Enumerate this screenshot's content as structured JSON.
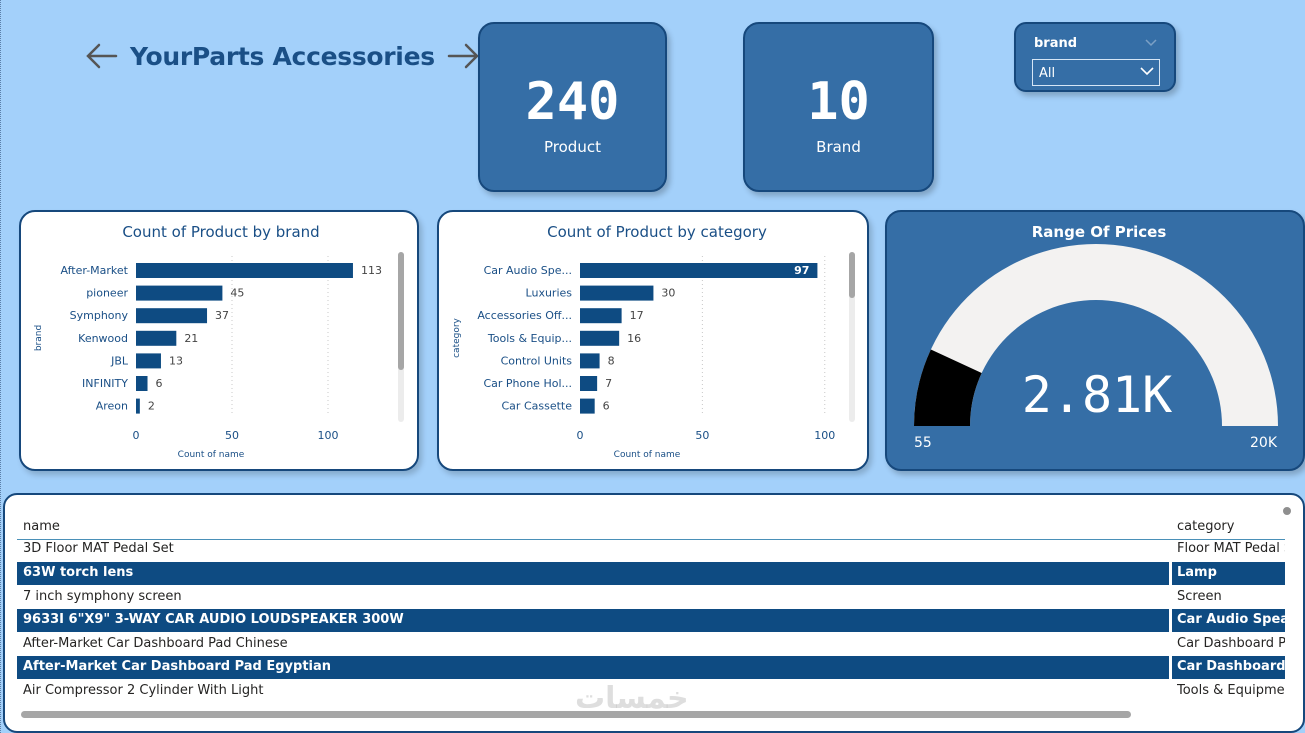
{
  "header": {
    "title": "YourParts Accessories"
  },
  "kpis": [
    {
      "value": "240",
      "label": "Product"
    },
    {
      "value": "10",
      "label": "Brand"
    }
  ],
  "slicer": {
    "label": "brand",
    "selected": "All"
  },
  "chart_data": [
    {
      "type": "bar",
      "orientation": "horizontal",
      "title": "Count of Product by brand",
      "xlabel": "Count of name",
      "ylabel": "brand",
      "xlim": [
        0,
        125
      ],
      "xticks": [
        0,
        50,
        100
      ],
      "categories": [
        "After-Market",
        "pioneer",
        "Symphony",
        "Kenwood",
        "JBL",
        "INFINITY",
        "Areon"
      ],
      "values": [
        113,
        45,
        37,
        21,
        13,
        6,
        2
      ],
      "color": "#0e4b82"
    },
    {
      "type": "bar",
      "orientation": "horizontal",
      "title": "Count of Product by category",
      "xlabel": "Count of name",
      "ylabel": "category",
      "xlim": [
        0,
        105
      ],
      "xticks": [
        0,
        50,
        100
      ],
      "categories": [
        "Car Audio Spe...",
        "Luxuries",
        "Accessories Off...",
        "Tools & Equip...",
        "Control Units",
        "Car Phone Hol...",
        "Car Cassette"
      ],
      "values": [
        97,
        30,
        17,
        16,
        8,
        7,
        6
      ],
      "color": "#0e4b82"
    },
    {
      "type": "gauge",
      "title": "Range Of Prices",
      "min": 55,
      "max": 20000,
      "value": 2810,
      "value_label": "2.81K",
      "min_label": "55",
      "max_label": "20K",
      "fill_color": "#000000",
      "track_color": "#f3f2f1"
    }
  ],
  "table": {
    "columns": [
      "name",
      "category"
    ],
    "rows": [
      {
        "name": "3D Floor MAT Pedal Set",
        "category": "Floor MAT Pedal S",
        "highlighted": false
      },
      {
        "name": "63W torch lens",
        "category": "Lamp",
        "highlighted": true
      },
      {
        "name": "7 inch symphony screen",
        "category": "Screen",
        "highlighted": false
      },
      {
        "name": "9633I 6\"X9\" 3-WAY CAR AUDIO LOUDSPEAKER 300W",
        "category": "Car Audio Speake",
        "highlighted": true
      },
      {
        "name": "After-Market Car Dashboard Pad Chinese",
        "category": "Car Dashboard Pa",
        "highlighted": false
      },
      {
        "name": "After-Market Car Dashboard Pad Egyptian",
        "category": "Car Dashboard Pa",
        "highlighted": true
      },
      {
        "name": "Air Compressor 2 Cylinder With Light",
        "category": "Tools & Equipmer",
        "highlighted": false
      }
    ]
  },
  "watermark": "خمسات"
}
